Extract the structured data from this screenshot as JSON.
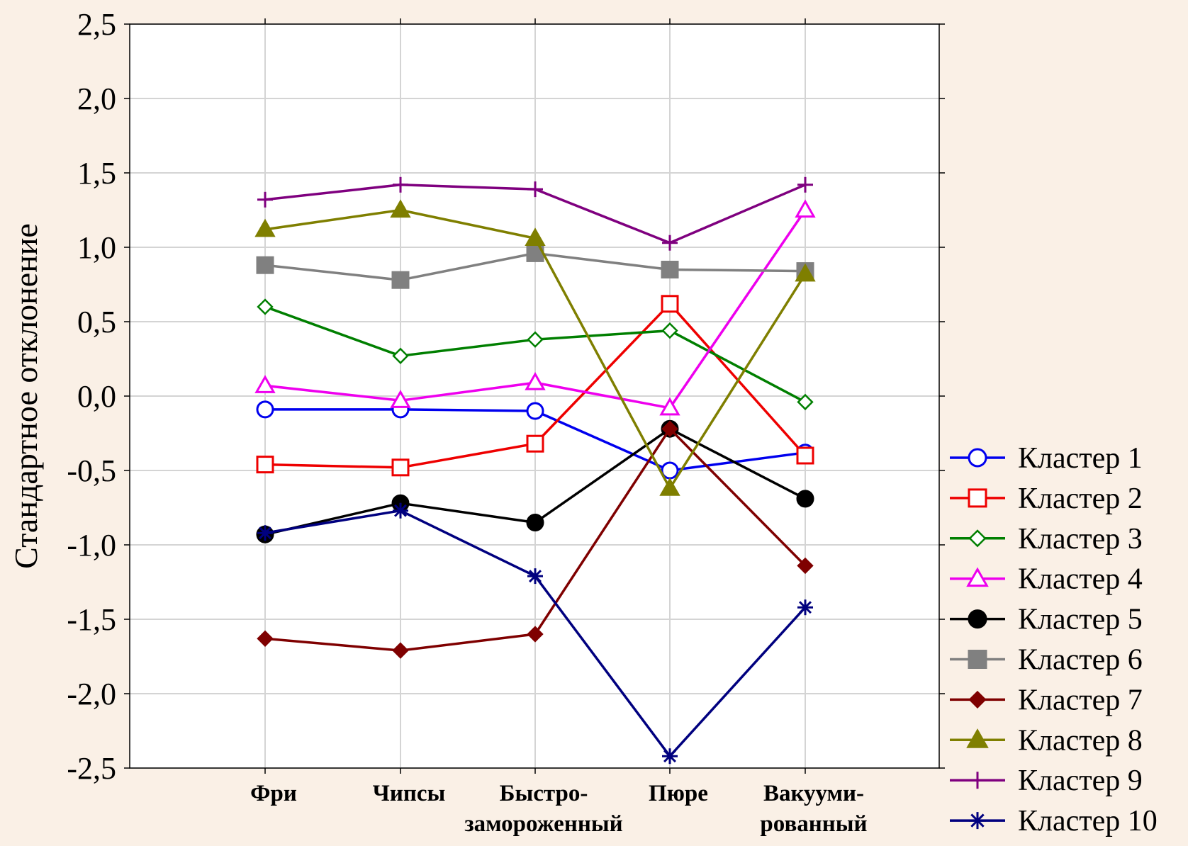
{
  "chart_data": {
    "type": "line",
    "title": "",
    "xlabel": "",
    "ylabel": "Стандартное отклонение",
    "categories": [
      [
        "Фри"
      ],
      [
        "Чипсы"
      ],
      [
        "Быстро-",
        "замороженный"
      ],
      [
        "Пюре"
      ],
      [
        "Вакууми-",
        "рованный"
      ]
    ],
    "ylim": [
      -2.5,
      2.5
    ],
    "yticks": [
      2.5,
      2.0,
      1.5,
      1.0,
      0.5,
      0.0,
      -0.5,
      -1.0,
      -1.5,
      -2.0,
      -2.5
    ],
    "ytick_labels": [
      "2,5",
      "2,0",
      "1,5",
      "1,0",
      "0,5",
      "0,0",
      "-0,5",
      "-1,0",
      "-1,5",
      "-2,0",
      "-2,5"
    ],
    "grid": true,
    "legend_position": "bottom-right",
    "series": [
      {
        "name": "Кластер  1",
        "color": "#0000ee",
        "marker": "circle-open",
        "values": [
          -0.09,
          -0.09,
          -0.1,
          -0.5,
          -0.38
        ]
      },
      {
        "name": "Кластер  2",
        "color": "#ee0000",
        "marker": "square-open",
        "values": [
          -0.46,
          -0.48,
          -0.32,
          0.62,
          -0.4
        ]
      },
      {
        "name": "Кластер  3",
        "color": "#007f00",
        "marker": "diamond-open",
        "values": [
          0.6,
          0.27,
          0.38,
          0.44,
          -0.04
        ]
      },
      {
        "name": "Кластер  4",
        "color": "#ee00ee",
        "marker": "triangle-open",
        "values": [
          0.07,
          -0.03,
          0.09,
          -0.08,
          1.25
        ]
      },
      {
        "name": "Кластер  5",
        "color": "#000000",
        "marker": "circle-filled",
        "values": [
          -0.93,
          -0.72,
          -0.85,
          -0.22,
          -0.69
        ]
      },
      {
        "name": "Кластер  6",
        "color": "#808080",
        "marker": "square-filled",
        "values": [
          0.88,
          0.78,
          0.96,
          0.85,
          0.84
        ]
      },
      {
        "name": "Кластер  7",
        "color": "#7f0000",
        "marker": "diamond-filled",
        "values": [
          -1.63,
          -1.71,
          -1.6,
          -0.22,
          -1.14
        ]
      },
      {
        "name": "Кластер  8",
        "color": "#7f7f00",
        "marker": "triangle-filled",
        "values": [
          1.12,
          1.25,
          1.06,
          -0.62,
          0.82
        ]
      },
      {
        "name": "Кластер  9",
        "color": "#7f007f",
        "marker": "plus",
        "values": [
          1.32,
          1.42,
          1.39,
          1.03,
          1.42
        ]
      },
      {
        "name": "Кластер  10",
        "color": "#00007f",
        "marker": "asterisk",
        "values": [
          -0.92,
          -0.77,
          -1.21,
          -2.42,
          -1.42
        ]
      }
    ]
  }
}
